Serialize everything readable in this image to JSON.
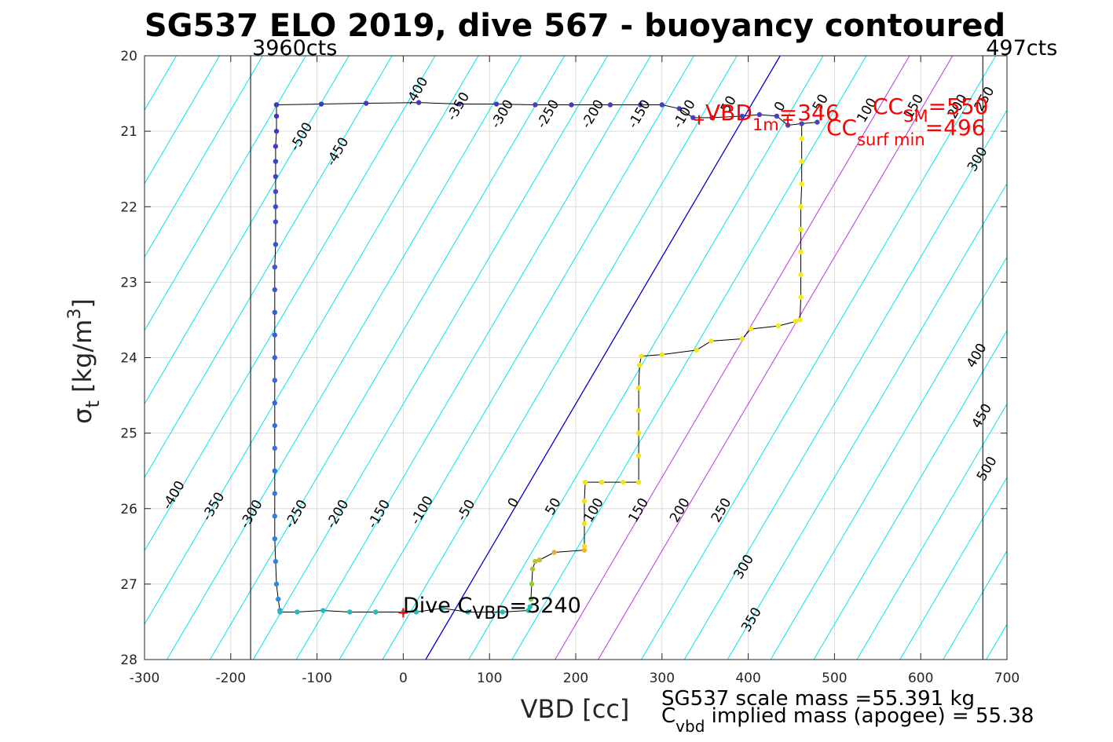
{
  "title": "SG537 ELO 2019, dive 567 - buoyancy contoured",
  "chart_data": {
    "type": "scatter",
    "title": "SG537 ELO 2019, dive 567 - buoyancy contoured",
    "xlabel": "VBD [cc]",
    "ylabel_main": "σ",
    "ylabel_sub": "t",
    "ylabel_unit_pre": " [kg/m",
    "ylabel_unit_sup": "3",
    "ylabel_unit_post": "]",
    "xlim": [
      -300,
      700
    ],
    "ylim": [
      20,
      28
    ],
    "y_reversed": true,
    "grid": true,
    "x_ticks": [
      -300,
      -200,
      -100,
      0,
      100,
      200,
      300,
      400,
      500,
      600,
      700
    ],
    "y_ticks": [
      20,
      21,
      22,
      23,
      24,
      25,
      26,
      27,
      28
    ],
    "vlines": [
      {
        "x": -177,
        "label": "3960cts",
        "color": "#000000"
      },
      {
        "x": 672,
        "label": "497cts",
        "color": "#000000"
      }
    ],
    "contour_spacing_cc": 50,
    "zero_contour_color": "#0000cc",
    "contour_color": "#00e5e5",
    "highlight_contour_color": "#b833e8",
    "highlight_contour_levels": [
      150,
      200
    ],
    "contour_labels_top": [
      {
        "x": 20,
        "y": 20.5,
        "text": "-400"
      },
      {
        "x": 68,
        "y": 20.7,
        "text": "-350"
      },
      {
        "x": 119,
        "y": 20.8,
        "text": "-300"
      },
      {
        "x": 172,
        "y": 20.8,
        "text": "-250"
      },
      {
        "x": 224,
        "y": 20.8,
        "text": "-200"
      },
      {
        "x": 278,
        "y": 20.8,
        "text": "-150"
      },
      {
        "x": 330,
        "y": 20.8,
        "text": "-100"
      },
      {
        "x": -114,
        "y": 21.1,
        "text": "-500"
      },
      {
        "x": -72,
        "y": 21.3,
        "text": "-450"
      },
      {
        "x": 380,
        "y": 20.7,
        "text": "-50"
      },
      {
        "x": 441,
        "y": 20.7,
        "text": "0"
      },
      {
        "x": 488,
        "y": 20.65,
        "text": "50"
      },
      {
        "x": 542,
        "y": 20.75,
        "text": "100"
      },
      {
        "x": 596,
        "y": 20.7,
        "text": "150"
      },
      {
        "x": 647,
        "y": 20.7,
        "text": "200"
      },
      {
        "x": 678,
        "y": 20.6,
        "text": "250"
      },
      {
        "x": 670,
        "y": 21.4,
        "text": "300"
      }
    ],
    "contour_labels_right": [
      {
        "x": 669,
        "y": 24.0,
        "text": "400"
      },
      {
        "x": 675,
        "y": 24.8,
        "text": "450"
      },
      {
        "x": 681,
        "y": 25.5,
        "text": "500"
      }
    ],
    "contour_labels_bottom": [
      {
        "x": -262,
        "y": 25.85,
        "text": "-400"
      },
      {
        "x": -216,
        "y": 26.0,
        "text": "-350"
      },
      {
        "x": -172,
        "y": 26.1,
        "text": "-300"
      },
      {
        "x": -120,
        "y": 26.1,
        "text": "-250"
      },
      {
        "x": -72,
        "y": 26.1,
        "text": "-200"
      },
      {
        "x": -24,
        "y": 26.1,
        "text": "-150"
      },
      {
        "x": 26,
        "y": 26.05,
        "text": "-100"
      },
      {
        "x": 77,
        "y": 26.05,
        "text": "-50"
      },
      {
        "x": 132,
        "y": 25.95,
        "text": "0"
      },
      {
        "x": 178,
        "y": 26.0,
        "text": "50"
      },
      {
        "x": 225,
        "y": 26.05,
        "text": "100"
      },
      {
        "x": 277,
        "y": 26.05,
        "text": "150"
      },
      {
        "x": 325,
        "y": 26.05,
        "text": "200"
      },
      {
        "x": 373,
        "y": 26.05,
        "text": "250"
      },
      {
        "x": 399,
        "y": 26.8,
        "text": "300"
      },
      {
        "x": 408,
        "y": 27.5,
        "text": "350"
      }
    ],
    "series": [
      {
        "color_range": "blue-to-cyan",
        "points": [
          [
            -147,
            20.65
          ],
          [
            -147,
            20.8
          ],
          [
            -147,
            21.0
          ],
          [
            -148,
            21.2
          ],
          [
            -148,
            21.4
          ],
          [
            -148,
            21.6
          ],
          [
            -148,
            21.8
          ],
          [
            -148,
            22.0
          ],
          [
            -148,
            22.2
          ],
          [
            -148,
            22.5
          ],
          [
            -149,
            22.8
          ],
          [
            -149,
            23.1
          ],
          [
            -149,
            23.4
          ],
          [
            -149,
            23.7
          ],
          [
            -149,
            24.0
          ],
          [
            -149,
            24.3
          ],
          [
            -149,
            24.6
          ],
          [
            -149,
            24.9
          ],
          [
            -149,
            25.2
          ],
          [
            -149,
            25.5
          ],
          [
            -149,
            25.8
          ],
          [
            -149,
            26.1
          ],
          [
            -149,
            26.4
          ],
          [
            -148,
            26.7
          ],
          [
            -147,
            27.0
          ],
          [
            -145,
            27.2
          ],
          [
            -143,
            27.35
          ]
        ]
      },
      {
        "color_range": "cyan",
        "points": [
          [
            -143,
            27.37
          ],
          [
            -123,
            27.37
          ],
          [
            -93,
            27.35
          ],
          [
            -62,
            27.37
          ],
          [
            -32,
            27.37
          ],
          [
            0,
            27.37
          ],
          [
            15,
            27.37
          ],
          [
            45,
            27.32
          ],
          [
            75,
            27.37
          ],
          [
            115,
            27.37
          ],
          [
            145,
            27.35
          ],
          [
            147,
            27.3
          ]
        ]
      },
      {
        "color_range": "green-to-orange",
        "points": [
          [
            148,
            27.2
          ],
          [
            149,
            27.0
          ],
          [
            150,
            26.8
          ],
          [
            153,
            26.7
          ],
          [
            158,
            26.68
          ],
          [
            175,
            26.58
          ],
          [
            210,
            26.55
          ]
        ]
      },
      {
        "color_range": "yellow",
        "points": [
          [
            210,
            26.5
          ],
          [
            210,
            26.2
          ],
          [
            210,
            25.9
          ],
          [
            211,
            25.65
          ],
          [
            230,
            25.65
          ],
          [
            255,
            25.65
          ],
          [
            273,
            25.65
          ],
          [
            273,
            25.3
          ],
          [
            273,
            25.0
          ],
          [
            273,
            24.7
          ],
          [
            273,
            24.4
          ],
          [
            274,
            24.1
          ],
          [
            276,
            23.98
          ],
          [
            300,
            23.96
          ],
          [
            340,
            23.9
          ],
          [
            357,
            23.78
          ],
          [
            393,
            23.75
          ],
          [
            403,
            23.62
          ],
          [
            435,
            23.58
          ],
          [
            455,
            23.52
          ],
          [
            460,
            23.5
          ],
          [
            461,
            23.2
          ],
          [
            461,
            22.9
          ],
          [
            461,
            22.6
          ],
          [
            461,
            22.3
          ],
          [
            461,
            22.0
          ],
          [
            462,
            21.7
          ],
          [
            462,
            21.4
          ],
          [
            462,
            21.1
          ],
          [
            462,
            20.9
          ]
        ]
      },
      {
        "color_range": "purple-top",
        "points": [
          [
            -147,
            20.65
          ],
          [
            -95,
            20.64
          ],
          [
            -43,
            20.63
          ],
          [
            18,
            20.62
          ],
          [
            65,
            20.64
          ],
          [
            108,
            20.64
          ],
          [
            153,
            20.65
          ],
          [
            195,
            20.65
          ],
          [
            240,
            20.65
          ],
          [
            275,
            20.65
          ],
          [
            300,
            20.65
          ],
          [
            320,
            20.7
          ],
          [
            336,
            20.82
          ],
          [
            358,
            20.82
          ],
          [
            393,
            20.8
          ],
          [
            413,
            20.78
          ],
          [
            433,
            20.8
          ],
          [
            446,
            20.92
          ],
          [
            462,
            20.9
          ],
          [
            480,
            20.88
          ]
        ]
      }
    ],
    "dive_c_vbd_marker": {
      "x": 0,
      "y": 27.38
    },
    "vbd_1m_marker": {
      "x": 343,
      "y": 20.85
    },
    "cc_markers": [
      {
        "x": 446,
        "y": 20.85
      }
    ],
    "annotations": {
      "dive_c_vbd_pre": "Dive C",
      "dive_c_vbd_sub": "VBD",
      "dive_c_vbd_post": "=3240",
      "vbd_1m_pre": "VBD",
      "vbd_1m_sub": "1m",
      "vbd_1m_post": "=346",
      "cc_sm_pre": "CC",
      "cc_sm_sub": "SM",
      "cc_sm_post": "=550",
      "cc_surf_pre": "CC",
      "cc_surf_sub": "surf min",
      "cc_surf_post": "=496"
    },
    "footer": {
      "scale_mass": "SG537 scale mass =55.391 kg",
      "cvbd_pre": "C",
      "cvbd_sub": "vbd",
      "cvbd_post": " implied mass (apogee) = 55.38"
    }
  },
  "colors": {
    "grid": "#dcdcdc",
    "axes": "#262626",
    "trace": "#000000",
    "annotation_red": "#ff0000"
  }
}
